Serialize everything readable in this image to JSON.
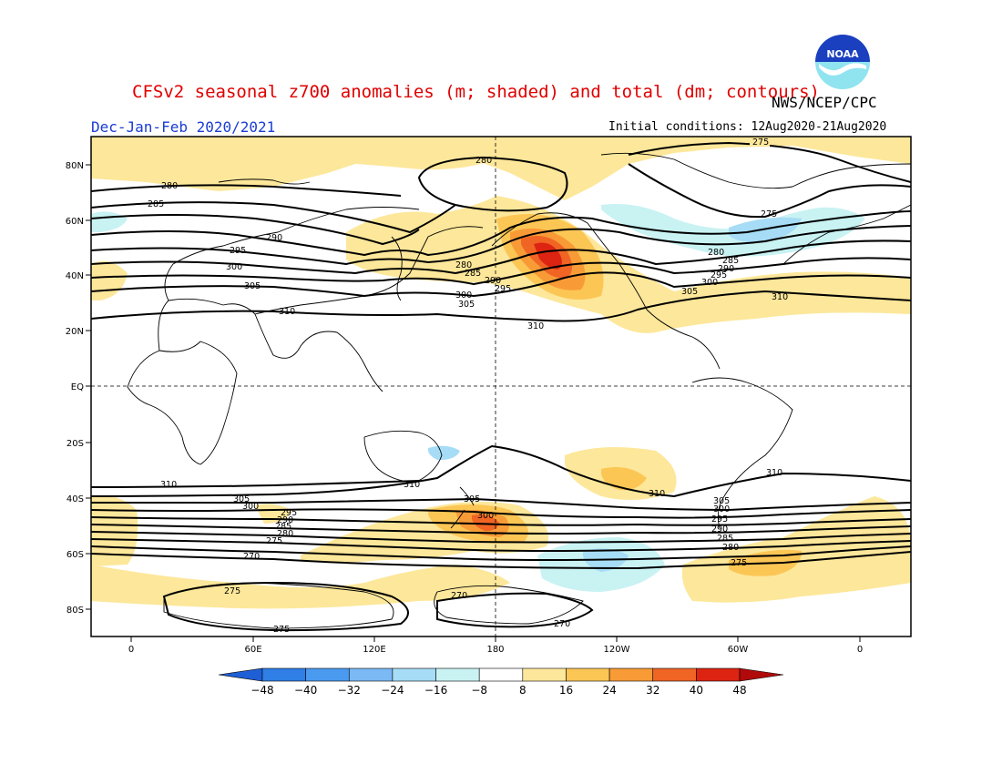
{
  "header": {
    "title": "CFSv2 seasonal z700 anomalies (m; shaded) and total (dm; contours)",
    "credit": "NWS/NCEP/CPC",
    "season": "Dec-Jan-Feb 2020/2021",
    "initial_conditions": "Initial conditions: 12Aug2020-21Aug2020",
    "logo_text": "NOAA"
  },
  "axes": {
    "lat_labels": [
      "80N",
      "60N",
      "40N",
      "20N",
      "EQ",
      "20S",
      "40S",
      "60S",
      "80S"
    ],
    "lon_labels": [
      "0",
      "60E",
      "120E",
      "180",
      "120W",
      "60W",
      "0"
    ]
  },
  "contour_labels": {
    "c275": "275",
    "c280": "280",
    "c285": "285",
    "c290": "290",
    "c295": "295",
    "c300": "300",
    "c305": "305",
    "c310": "310",
    "c270": "270"
  },
  "colorbar": {
    "ticks": [
      "-48",
      "-40",
      "-32",
      "-24",
      "-16",
      "-8",
      "8",
      "16",
      "24",
      "32",
      "40",
      "48"
    ],
    "colors": [
      "#1f5fd6",
      "#2f7fe6",
      "#4a9af0",
      "#7ab9f4",
      "#a6dcf5",
      "#c9f2f3",
      "#ffffff",
      "#fde79a",
      "#fcc655",
      "#f89b37",
      "#f06424",
      "#dd2412",
      "#b00a0a"
    ]
  }
}
